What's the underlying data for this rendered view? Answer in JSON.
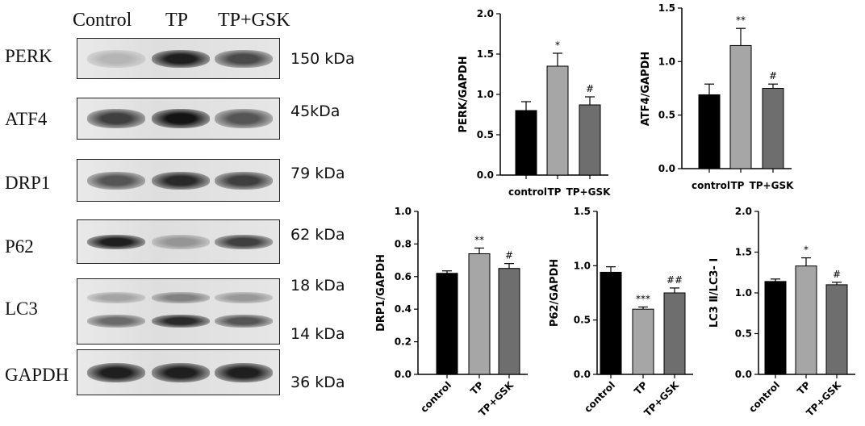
{
  "blot": {
    "lanes": [
      "Control",
      "TP",
      "TP+GSK"
    ],
    "rows": [
      {
        "protein": "PERK",
        "sizes": [
          "150 kDa"
        ],
        "intensity": [
          0.25,
          0.95,
          0.75
        ]
      },
      {
        "protein": "ATF4",
        "sizes": [
          "45kDa"
        ],
        "intensity": [
          0.8,
          1.0,
          0.7
        ]
      },
      {
        "protein": "DRP1",
        "sizes": [
          "79 kDa"
        ],
        "intensity": [
          0.7,
          0.9,
          0.8
        ]
      },
      {
        "protein": "P62",
        "sizes": [
          "62 kDa"
        ],
        "intensity": [
          0.95,
          0.4,
          0.8
        ]
      },
      {
        "protein": "LC3",
        "sizes": [
          "18 kDa",
          "14 kDa"
        ],
        "intensity": [
          0.6,
          0.9,
          0.7
        ]
      },
      {
        "protein": "GAPDH",
        "sizes": [
          "36 kDa"
        ],
        "intensity": [
          0.95,
          0.95,
          0.95
        ]
      }
    ]
  },
  "chart_data": [
    {
      "type": "bar",
      "ylabel": "PERK/GAPDH",
      "categories": [
        "control",
        "TP",
        "TP+GSK"
      ],
      "values": [
        0.8,
        1.35,
        0.87
      ],
      "errors": [
        0.11,
        0.16,
        0.1
      ],
      "annotations": [
        "",
        "*",
        "#"
      ],
      "ylim": [
        0,
        2.0
      ],
      "yticks": [
        "0.0",
        "0.5",
        "1.0",
        "1.5",
        "2.0"
      ],
      "xlabels_rotated": false,
      "colors": [
        "#000000",
        "#a6a6a6",
        "#6e6e6e"
      ]
    },
    {
      "type": "bar",
      "ylabel": "ATF4/GAPDH",
      "categories": [
        "control",
        "TP",
        "TP+GSK"
      ],
      "values": [
        0.69,
        1.15,
        0.75
      ],
      "errors": [
        0.1,
        0.16,
        0.04
      ],
      "annotations": [
        "",
        "**",
        "#"
      ],
      "ylim": [
        0,
        1.5
      ],
      "yticks": [
        "0.0",
        "0.5",
        "1.0",
        "1.5"
      ],
      "xlabels_rotated": false,
      "colors": [
        "#000000",
        "#a6a6a6",
        "#6e6e6e"
      ]
    },
    {
      "type": "bar",
      "ylabel": "DRP1/GAPDH",
      "categories": [
        "control",
        "TP",
        "TP+GSK"
      ],
      "values": [
        0.62,
        0.74,
        0.65
      ],
      "errors": [
        0.015,
        0.035,
        0.03
      ],
      "annotations": [
        "",
        "**",
        "#"
      ],
      "ylim": [
        0,
        1.0
      ],
      "yticks": [
        "0.0",
        "0.2",
        "0.4",
        "0.6",
        "0.8",
        "1.0"
      ],
      "xlabels_rotated": true,
      "colors": [
        "#000000",
        "#a6a6a6",
        "#6e6e6e"
      ]
    },
    {
      "type": "bar",
      "ylabel": "P62/GAPDH",
      "categories": [
        "control",
        "TP",
        "TP+GSK"
      ],
      "values": [
        0.94,
        0.6,
        0.75
      ],
      "errors": [
        0.05,
        0.02,
        0.045
      ],
      "annotations": [
        "",
        "***",
        "##"
      ],
      "ylim": [
        0,
        1.5
      ],
      "yticks": [
        "0.0",
        "0.5",
        "1.0",
        "1.5"
      ],
      "xlabels_rotated": true,
      "colors": [
        "#000000",
        "#a6a6a6",
        "#6e6e6e"
      ]
    },
    {
      "type": "bar",
      "ylabel": "LC3 Ⅱ/LC3- Ⅰ",
      "categories": [
        "control",
        "TP",
        "TP+GSK"
      ],
      "values": [
        1.14,
        1.33,
        1.1
      ],
      "errors": [
        0.03,
        0.1,
        0.03
      ],
      "annotations": [
        "",
        "*",
        "#"
      ],
      "ylim": [
        0,
        2.0
      ],
      "yticks": [
        "0.0",
        "0.5",
        "1.0",
        "1.5",
        "2.0"
      ],
      "xlabels_rotated": true,
      "colors": [
        "#000000",
        "#a6a6a6",
        "#6e6e6e"
      ]
    }
  ]
}
